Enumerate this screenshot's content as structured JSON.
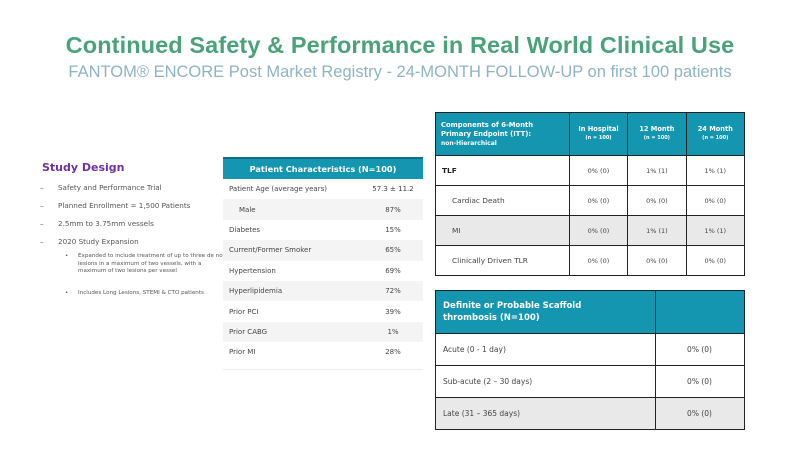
{
  "header": {
    "title": "Continued Safety & Performance in Real World Clinical Use",
    "subtitle": "FANTOM® ENCORE Post Market Registry - 24-MONTH FOLLOW-UP on first 100 patients"
  },
  "study_design": {
    "title": "Study Design",
    "items": [
      "Safety and Performance Trial",
      "Planned Enrollment = 1,500 Patients",
      "2.5mm to 3.75mm vessels",
      "2020 Study Expansion"
    ],
    "sub_items": [
      "Expanded to include treatment of up to three de novo lesions in a maximum of two vessels, with a maximum of two lesions per vessel",
      "Includes Long Lesions, STEMI & CTO patients"
    ]
  },
  "patient_characteristics": {
    "title": "Patient Characteristics (N=100)",
    "rows": [
      {
        "label": "Patient Age (average years)",
        "value": "57.3 ± 11.2"
      },
      {
        "label": "Male",
        "value": "87%"
      },
      {
        "label": "Diabetes",
        "value": "15%"
      },
      {
        "label": "Current/Former Smoker",
        "value": "65%"
      },
      {
        "label": "Hypertension",
        "value": "69%"
      },
      {
        "label": "Hyperlipidemia",
        "value": "72%"
      },
      {
        "label": "Prior PCI",
        "value": "39%"
      },
      {
        "label": "Prior CABG",
        "value": "1%"
      },
      {
        "label": "Prior MI",
        "value": "28%"
      }
    ]
  },
  "endpoint_table": {
    "header": {
      "line1": "Components of 6-Month",
      "line2": "Primary Endpoint (ITT):",
      "line3": "non-Hierarchical"
    },
    "columns": [
      {
        "label": "In Hospital",
        "n": "(n = 100)"
      },
      {
        "label": "12  Month",
        "n": "(n = 100)"
      },
      {
        "label": "24 Month",
        "n": "(n = 100)"
      }
    ],
    "rows": [
      {
        "label": "TLF",
        "values": [
          "0% (0)",
          "1% (1)",
          "1% (1)"
        ]
      },
      {
        "label": "Cardiac Death",
        "values": [
          "0% (0)",
          "0% (0)",
          "0% (0)"
        ]
      },
      {
        "label": "MI",
        "values": [
          "0% (0)",
          "1% (1)",
          "1% (1)"
        ]
      },
      {
        "label": "Clinically Driven TLR",
        "values": [
          "0% (0)",
          "0% (0)",
          "0% (0)"
        ]
      }
    ]
  },
  "thrombosis_table": {
    "header_line1": "Definite or Probable Scaffold",
    "header_line2": "thrombosis (N=100)",
    "rows": [
      {
        "label": "Acute (0 - 1 day)",
        "value": "0% (0)"
      },
      {
        "label": "Sub-acute (2 – 30 days)",
        "value": "0% (0)"
      },
      {
        "label": "Late (31 – 365 days)",
        "value": "0% (0)"
      }
    ]
  },
  "colors": {
    "title_green": "#4aa27a",
    "subtitle_blue": "#8fb3c4",
    "table_header_teal": "#1496b0",
    "study_design_purple": "#7030a0"
  }
}
